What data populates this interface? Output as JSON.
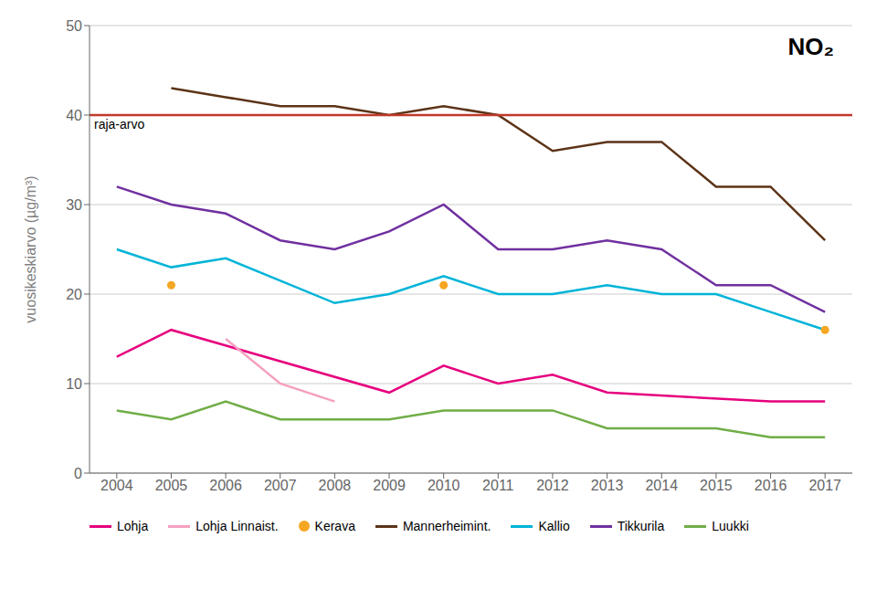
{
  "chart_data": {
    "type": "line",
    "x": [
      2004,
      2005,
      2006,
      2007,
      2008,
      2009,
      2010,
      2011,
      2012,
      2013,
      2014,
      2015,
      2016,
      2017
    ],
    "series": [
      {
        "name": "Lohja",
        "color": "#e6007e",
        "values": [
          13,
          16,
          null,
          null,
          null,
          9,
          12,
          10,
          11,
          9,
          null,
          null,
          8,
          8
        ]
      },
      {
        "name": "Lohja Linnaist.",
        "color": "#f5a0c0",
        "values": [
          null,
          null,
          15,
          10,
          8,
          null,
          null,
          null,
          null,
          null,
          null,
          null,
          null,
          null
        ]
      },
      {
        "name": "Kerava",
        "type": "scatter",
        "marker": "circle",
        "color": "#f5a623",
        "values": [
          null,
          21,
          null,
          null,
          null,
          null,
          21,
          null,
          null,
          null,
          null,
          null,
          null,
          16
        ]
      },
      {
        "name": "Mannerheimint.",
        "color": "#5c3317",
        "values": [
          null,
          43,
          42,
          41,
          41,
          40,
          41,
          40,
          36,
          37,
          37,
          32,
          32,
          26
        ]
      },
      {
        "name": "Kallio",
        "color": "#00b4d8",
        "values": [
          25,
          23,
          24,
          null,
          19,
          20,
          22,
          20,
          20,
          21,
          20,
          20,
          18,
          16
        ]
      },
      {
        "name": "Tikkurila",
        "color": "#7030a0",
        "values": [
          32,
          30,
          29,
          26,
          25,
          27,
          30,
          25,
          25,
          26,
          25,
          21,
          21,
          18
        ]
      },
      {
        "name": "Luukki",
        "color": "#70ad47",
        "values": [
          7,
          6,
          8,
          6,
          6,
          6,
          7,
          7,
          7,
          5,
          5,
          5,
          4,
          4
        ]
      }
    ],
    "ylabel": "vuosikeskiarvo (µg/m³)",
    "annotations": [
      "NO₂"
    ],
    "hlines": [
      {
        "value": 40,
        "label": "raja-arvo",
        "color": "#c0392b"
      }
    ],
    "xlim": [
      2003.5,
      2017.5
    ],
    "xticks": [
      2004,
      2005,
      2006,
      2007,
      2008,
      2009,
      2010,
      2011,
      2012,
      2013,
      2014,
      2015,
      2016,
      2017
    ],
    "ylim": [
      0,
      50
    ],
    "yticks": [
      0,
      10,
      20,
      30,
      40,
      50
    ],
    "grid": true
  }
}
